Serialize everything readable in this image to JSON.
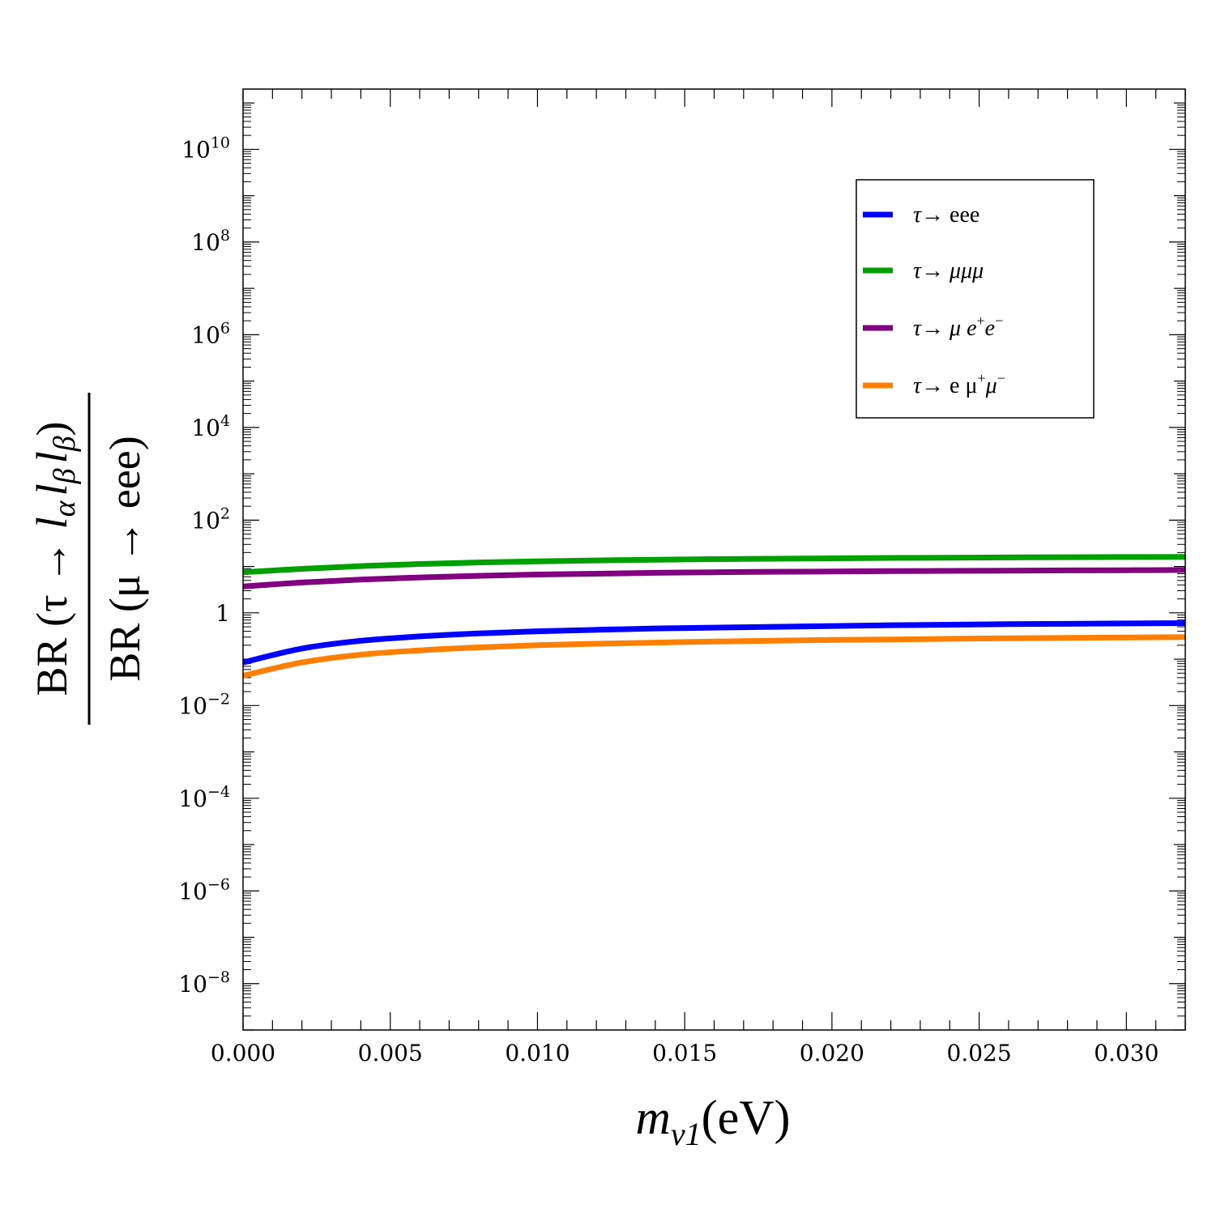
{
  "chart_data": {
    "type": "line",
    "x_scale": "linear",
    "y_scale": "log",
    "xlim": [
      0.0,
      0.032
    ],
    "ylim_log10": [
      -9,
      11.3
    ],
    "x_ticks": [
      0.0,
      0.005,
      0.01,
      0.015,
      0.02,
      0.025,
      0.03
    ],
    "x_tick_labels": [
      "0.000",
      "0.005",
      "0.010",
      "0.015",
      "0.020",
      "0.025",
      "0.030"
    ],
    "y_ticks_log10": [
      -8,
      -6,
      -4,
      -2,
      0,
      2,
      4,
      6,
      8,
      10
    ],
    "y_tick_labels": [
      {
        "base": "10",
        "exp": "−8"
      },
      {
        "base": "10",
        "exp": "−6"
      },
      {
        "base": "10",
        "exp": "−4"
      },
      {
        "base": "10",
        "exp": "−2"
      },
      {
        "base": "1",
        "exp": ""
      },
      {
        "base": "10",
        "exp": "2"
      },
      {
        "base": "10",
        "exp": "4"
      },
      {
        "base": "10",
        "exp": "6"
      },
      {
        "base": "10",
        "exp": "8"
      },
      {
        "base": "10",
        "exp": "10"
      }
    ],
    "xlabel": {
      "m": "m",
      "sub": "ν1",
      "unit": "(eV)"
    },
    "ylabel": {
      "numerator": {
        "pre": "BR (τ → ",
        "l1": "l",
        "s1": "α",
        "l2": "l",
        "s2": "β",
        "l3": "l",
        "s3": "β",
        "post": ")"
      },
      "denominator": "BR (μ → eee)"
    },
    "x": [
      0.0,
      0.002,
      0.004,
      0.006,
      0.008,
      0.01,
      0.012,
      0.014,
      0.016,
      0.018,
      0.02,
      0.022,
      0.024,
      0.026,
      0.028,
      0.03,
      0.032
    ],
    "series": [
      {
        "name": "tau-eee",
        "color": "#0000ff",
        "values": [
          0.085,
          0.17,
          0.25,
          0.31,
          0.36,
          0.4,
          0.43,
          0.46,
          0.48,
          0.5,
          0.52,
          0.54,
          0.555,
          0.57,
          0.58,
          0.59,
          0.6
        ]
      },
      {
        "name": "tau-mumumu",
        "color": "#00a000",
        "values": [
          7.5,
          8.9,
          10.2,
          11.3,
          12.2,
          12.9,
          13.5,
          14.0,
          14.4,
          14.7,
          15.0,
          15.3,
          15.5,
          15.7,
          15.9,
          16.0,
          16.1
        ]
      },
      {
        "name": "tau-mu-ee",
        "color": "#800080",
        "values": [
          3.7,
          4.5,
          5.2,
          5.8,
          6.3,
          6.7,
          7.0,
          7.3,
          7.5,
          7.7,
          7.8,
          7.95,
          8.05,
          8.15,
          8.25,
          8.32,
          8.4
        ]
      },
      {
        "name": "tau-e-mumu",
        "color": "#ff8000",
        "values": [
          0.044,
          0.085,
          0.125,
          0.155,
          0.18,
          0.2,
          0.215,
          0.228,
          0.24,
          0.25,
          0.26,
          0.267,
          0.275,
          0.282,
          0.288,
          0.294,
          0.3
        ]
      }
    ],
    "legend": [
      {
        "arrow": "τ→ ",
        "text": "eee",
        "italic": false,
        "sup1": "",
        "mid": "",
        "sup2": "",
        "color": "#0000ff"
      },
      {
        "arrow": "τ→ ",
        "text": "μμμ",
        "italic": true,
        "sup1": "",
        "mid": "",
        "sup2": "",
        "color": "#00a000"
      },
      {
        "arrow": "τ→ ",
        "text": "μ e",
        "italic": true,
        "sup1": "+",
        "mid": "e",
        "sup2": "−",
        "color": "#800080"
      },
      {
        "arrow": "τ→ ",
        "text": "e μ",
        "italic": false,
        "sup1": "+",
        "mid": "μ",
        "sup2": "−",
        "color": "#ff8000"
      }
    ],
    "legend_position": "top-right"
  }
}
